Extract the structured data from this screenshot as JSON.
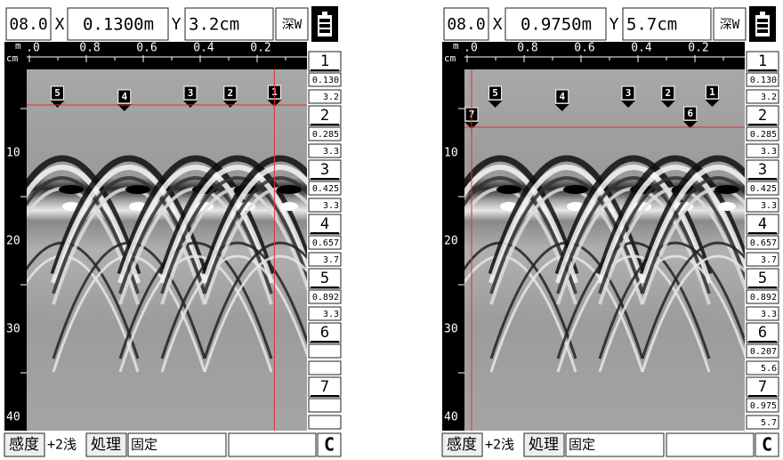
{
  "panels": [
    {
      "header": {
        "range": "08.0",
        "x_label": "X",
        "x_value": "0.1300m",
        "y_label": "Y",
        "y_value": "3.2cm",
        "mode": "深W"
      },
      "ruler": {
        "unit_x": "m",
        "unit_y": "cm",
        "x_ticks": [
          ".0",
          "0.8",
          "0.6",
          "0.4",
          "0.2"
        ],
        "y_ticks": [
          "10",
          "20",
          "30",
          "40"
        ]
      },
      "list": [
        {
          "id": "1",
          "x": "0.130",
          "depth": "3.2"
        },
        {
          "id": "2",
          "x": "0.285",
          "depth": "3.3"
        },
        {
          "id": "3",
          "x": "0.425",
          "depth": "3.3"
        },
        {
          "id": "4",
          "x": "0.657",
          "depth": "3.7"
        },
        {
          "id": "5",
          "x": "0.892",
          "depth": "3.3"
        },
        {
          "id": "6"
        },
        {
          "id": "7"
        }
      ],
      "footer": {
        "sensitivity_label": "感度",
        "sensitivity": "+2浅",
        "process_label": "処理",
        "process": "固定",
        "clear": "C"
      }
    },
    {
      "header": {
        "range": "08.0",
        "x_label": "X",
        "x_value": "0.9750m",
        "y_label": "Y",
        "y_value": "5.7cm",
        "mode": "深W"
      },
      "ruler": {
        "unit_x": "m",
        "unit_y": "cm",
        "x_ticks": [
          ".0",
          "0.8",
          "0.6",
          "0.4",
          "0.2"
        ],
        "y_ticks": [
          "10",
          "20",
          "30",
          "40"
        ]
      },
      "list": [
        {
          "id": "1",
          "x": "0.130",
          "depth": "3.2"
        },
        {
          "id": "2",
          "x": "0.285",
          "depth": "3.3"
        },
        {
          "id": "3",
          "x": "0.425",
          "depth": "3.3"
        },
        {
          "id": "4",
          "x": "0.657",
          "depth": "3.7"
        },
        {
          "id": "5",
          "x": "0.892",
          "depth": "3.3"
        },
        {
          "id": "6",
          "x": "0.207",
          "depth": "5.6"
        },
        {
          "id": "7",
          "x": "0.975",
          "depth": "5.7"
        }
      ],
      "footer": {
        "sensitivity_label": "感度",
        "sensitivity": "+2浅",
        "process_label": "処理",
        "process": "固定",
        "clear": "C"
      }
    }
  ]
}
